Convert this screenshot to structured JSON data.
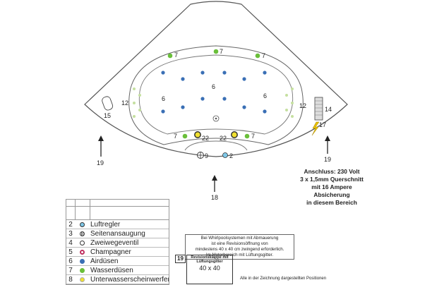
{
  "diagram": {
    "labels": {
      "jet_top_left": "7",
      "jet_top_center": "7",
      "jet_top_right": "7",
      "airjet_center": "6",
      "airjet_left": "6",
      "airjet_right": "6",
      "side_left": "12",
      "side_right": "12",
      "light_left": "15",
      "panel_right": "14",
      "spark_right": "17",
      "jet_bottom_left": "7",
      "jet_bottom_right": "7",
      "light_bottom_left": "22",
      "light_bottom_right": "22",
      "valve_bottom": "9",
      "regulator_bottom": "2",
      "arrow_left": "19",
      "arrow_right": "19",
      "arrow_center": "18"
    }
  },
  "connection_info": {
    "line1": "Anschluss: 230 Volt",
    "line2": "3 x 1,5mm Querschnitt",
    "line3": "mit 16 Ampere Absicherung",
    "line4": "in diesem Bereich"
  },
  "legend": {
    "items": [
      {
        "num": "2",
        "label": "Luftregler",
        "color": "#7fc8e8",
        "icon": "light-blue-circle-icon"
      },
      {
        "num": "3",
        "label": "Seitenansaugung",
        "color": "#ffffff",
        "icon": "grate-icon"
      },
      {
        "num": "4",
        "label": "Zweiwegeventil",
        "color": "#ffffff",
        "icon": "valve-icon"
      },
      {
        "num": "5",
        "label": "Champagner",
        "color": "#c03060",
        "icon": "ring-icon"
      },
      {
        "num": "6",
        "label": "Airdüsen",
        "color": "#3a6fb5",
        "icon": "blue-dot-icon"
      },
      {
        "num": "7",
        "label": "Wasserdüsen",
        "color": "#6abf3a",
        "icon": "green-dot-icon"
      },
      {
        "num": "8",
        "label": "Unterwasserscheinwerfer",
        "color": "#f0e030",
        "icon": "yellow-dot-icon"
      }
    ]
  },
  "note": {
    "line1": "Bei Whirlpoolsystemen mit Abmauerung",
    "line2": "ist eine Revisionsöffnung von",
    "line3": "mindestens 40 x 40 cm zwingend erforderlich.",
    "line4": "Im Motorbereich mit Lüftungsgitter."
  },
  "revision": {
    "number": "19",
    "title1": "Revisionsklappe mit",
    "title2": "Lüftungsgitter",
    "size": "40 x 40"
  },
  "footer": "Alle in der Zeichnung dargestellten Positionen",
  "colors": {
    "airjet": "#3a6fb5",
    "waterjet": "#6abf3a",
    "sidejet": "#c5e0a0",
    "light": "#f0e030",
    "outline": "#555555"
  }
}
